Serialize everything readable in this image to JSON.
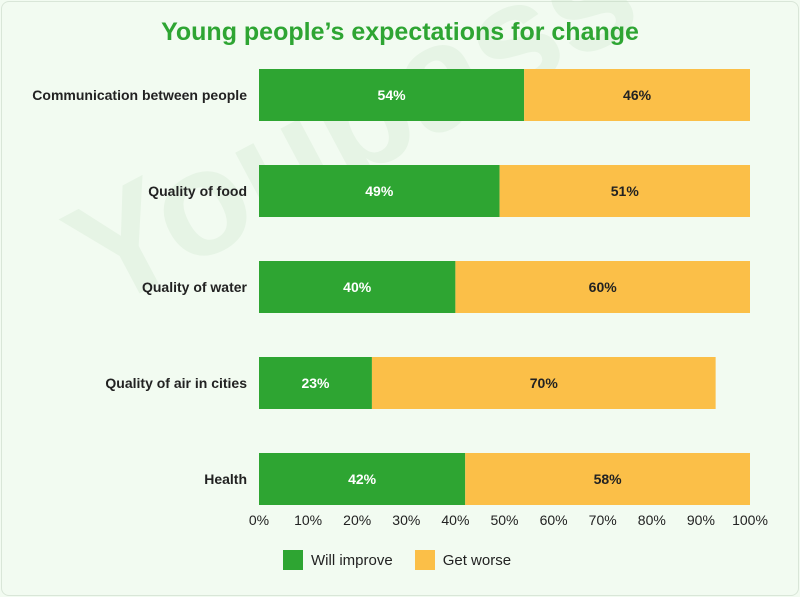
{
  "chart_data": {
    "type": "bar",
    "orientation": "horizontal",
    "stacked": true,
    "title": "Young people’s expectations for change",
    "categories": [
      "Communication between people",
      "Quality of food",
      "Quality of water",
      "Quality of air in cities",
      "Health"
    ],
    "series": [
      {
        "name": "Will improve",
        "values": [
          54,
          49,
          40,
          23,
          42
        ],
        "color": "#2ea532"
      },
      {
        "name": "Get worse",
        "values": [
          46,
          51,
          60,
          70,
          58
        ],
        "color": "#fbbf48"
      }
    ],
    "xlim": [
      0,
      100
    ],
    "xticks": [
      "0%",
      "10%",
      "20%",
      "30%",
      "40%",
      "50%",
      "60%",
      "70%",
      "80%",
      "90%",
      "100%"
    ],
    "value_suffix": "%",
    "legend_position": "bottom",
    "grid": false
  }
}
